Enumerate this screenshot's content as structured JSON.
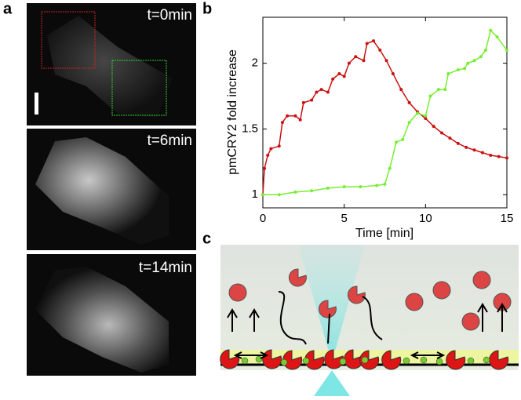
{
  "panel_labels": [
    "a",
    "b",
    "c"
  ],
  "images": [
    {
      "label": "t=0min"
    },
    {
      "label": "t=6min"
    },
    {
      "label": "t=14min"
    }
  ],
  "chart_data": {
    "type": "line",
    "xlabel": "Time [min]",
    "ylabel": "pmCRY2 fold increase",
    "xlim": [
      0,
      15
    ],
    "xticks": [
      0,
      5,
      10,
      15
    ],
    "ylim": [
      0.9,
      2.35
    ],
    "yticks": [
      1,
      1.5,
      2
    ],
    "series": [
      {
        "color": "#cc1111",
        "x": [
          0,
          0.1,
          0.3,
          0.5,
          1.0,
          1.2,
          1.5,
          2.0,
          2.3,
          2.5,
          3.0,
          3.3,
          3.6,
          4.0,
          4.3,
          4.7,
          5.0,
          5.3,
          5.7,
          6.2,
          6.4,
          6.8,
          7.2,
          7.6,
          8.0,
          8.5,
          9.0,
          9.5,
          10.0,
          10.5,
          11.0,
          11.5,
          12.0,
          12.5,
          13.0,
          13.5,
          14.0,
          14.5,
          15.0
        ],
        "values": [
          1.0,
          1.2,
          1.3,
          1.35,
          1.37,
          1.55,
          1.6,
          1.6,
          1.57,
          1.7,
          1.72,
          1.78,
          1.8,
          1.78,
          1.88,
          1.92,
          1.9,
          2.0,
          2.05,
          2.02,
          2.15,
          2.17,
          2.1,
          2.02,
          1.92,
          1.8,
          1.7,
          1.63,
          1.58,
          1.52,
          1.47,
          1.43,
          1.39,
          1.36,
          1.34,
          1.32,
          1.3,
          1.29,
          1.28
        ]
      },
      {
        "color": "#77ee33",
        "x": [
          0,
          1,
          2,
          3,
          4,
          5,
          6,
          7,
          7.5,
          7.8,
          8.2,
          8.6,
          9.0,
          9.5,
          10.0,
          10.3,
          10.8,
          11.2,
          11.4,
          12.0,
          12.4,
          12.6,
          13.0,
          13.4,
          13.7,
          14.0,
          14.4,
          15.0
        ],
        "values": [
          1.0,
          1.0,
          1.02,
          1.03,
          1.05,
          1.06,
          1.06,
          1.07,
          1.08,
          1.2,
          1.4,
          1.42,
          1.55,
          1.62,
          1.6,
          1.75,
          1.8,
          1.8,
          1.92,
          1.95,
          1.96,
          2.0,
          2.02,
          2.05,
          2.1,
          2.25,
          2.2,
          2.1
        ]
      }
    ]
  }
}
